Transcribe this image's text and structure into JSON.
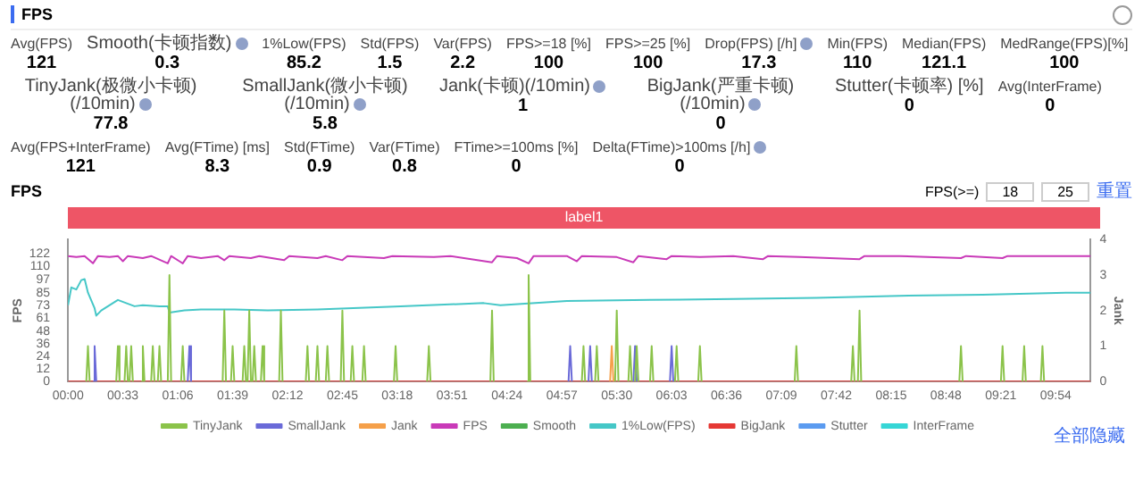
{
  "chart_data": [
    {
      "type": "other",
      "title": "FPS",
      "categories": [
        "Avg(FPS)",
        "Smooth(卡顿指数)",
        "1%Low(FPS)",
        "Std(FPS)",
        "Var(FPS)",
        "FPS>=18 [%]",
        "FPS>=25 [%]",
        "Drop(FPS) [/h]",
        "Min(FPS)",
        "Median(FPS)",
        "MedRange(FPS)[%]",
        "TinyJank(极微小卡顿)(/10min)",
        "SmallJank(微小卡顿)(/10min)",
        "Jank(卡顿)(/10min)",
        "BigJank(严重卡顿)(/10min)",
        "Stutter(卡顿率) [%]",
        "Avg(InterFrame)",
        "Avg(FPS+InterFrame)",
        "Avg(FTime) [ms]",
        "Std(FTime)",
        "Var(FTime)",
        "FTime>=100ms [%]",
        "Delta(FTime)>100ms [/h]"
      ],
      "values": [
        121,
        0.3,
        85.2,
        1.5,
        2.2,
        100,
        100,
        17.3,
        110,
        121.1,
        100,
        77.8,
        5.8,
        1,
        0,
        0,
        0,
        121,
        8.3,
        0.9,
        0.8,
        0,
        0
      ],
      "data_labels": true
    },
    {
      "type": "line",
      "title": "FPS",
      "ylabel": "FPS",
      "y2label": "Jank",
      "legend": "bottom",
      "annotations": [
        "FPS(>=)",
        "18",
        "25",
        "重置",
        "全部隐藏",
        "label1"
      ],
      "xlim": [
        0,
        615
      ],
      "xticks": [
        {
          "value": 0,
          "label": "00:00"
        },
        {
          "value": 33,
          "label": "00:33"
        },
        {
          "value": 66,
          "label": "01:06"
        },
        {
          "value": 99,
          "label": "01:39"
        },
        {
          "value": 132,
          "label": "02:12"
        },
        {
          "value": 165,
          "label": "02:45"
        },
        {
          "value": 198,
          "label": "03:18"
        },
        {
          "value": 231,
          "label": "03:51"
        },
        {
          "value": 264,
          "label": "04:24"
        },
        {
          "value": 297,
          "label": "04:57"
        },
        {
          "value": 330,
          "label": "05:30"
        },
        {
          "value": 363,
          "label": "06:03"
        },
        {
          "value": 396,
          "label": "06:36"
        },
        {
          "value": 429,
          "label": "07:09"
        },
        {
          "value": 462,
          "label": "07:42"
        },
        {
          "value": 495,
          "label": "08:15"
        },
        {
          "value": 528,
          "label": "08:48"
        },
        {
          "value": 561,
          "label": "09:21"
        },
        {
          "value": 594,
          "label": "09:54"
        }
      ],
      "ylim": [
        0,
        135.6
      ],
      "yticks": [
        0,
        12,
        24,
        36,
        48,
        61,
        73,
        85,
        97,
        110,
        122
      ],
      "y2lim": [
        0,
        4
      ],
      "y2ticks": [
        0,
        1,
        2,
        3,
        4
      ],
      "series": [
        {
          "name": "FPS",
          "color": "#c93ab8",
          "x": [
            0,
            5,
            10,
            15,
            18,
            25,
            30,
            33,
            36,
            45,
            50,
            60,
            62,
            67,
            69,
            72,
            80,
            90,
            94,
            97,
            110,
            115,
            130,
            133,
            150,
            155,
            165,
            168,
            190,
            195,
            220,
            230,
            255,
            258,
            270,
            277,
            280,
            300,
            306,
            309,
            330,
            340,
            343,
            360,
            363,
            380,
            400,
            418,
            421,
            440,
            476,
            479,
            500,
            537,
            540,
            562,
            565,
            590,
            615
          ],
          "values": [
            120,
            119,
            120,
            113,
            120,
            119,
            120,
            115,
            120,
            118,
            120,
            113,
            120,
            115,
            113,
            120,
            118,
            120,
            116,
            120,
            118,
            120,
            116,
            120,
            118,
            120,
            116,
            120,
            118,
            120,
            119,
            120,
            114,
            120,
            118,
            113,
            120,
            120,
            115,
            120,
            119,
            114,
            120,
            117,
            120,
            119,
            120,
            117,
            120,
            119,
            117,
            120,
            120,
            118,
            120,
            118,
            120,
            120,
            120
          ]
        },
        {
          "name": "Smooth",
          "color": "#4caf50"
        },
        {
          "name": "1%Low(FPS)",
          "color": "#45c7c7",
          "x": [
            0,
            2,
            5,
            8,
            10,
            12,
            16,
            17,
            20,
            27,
            30,
            35,
            40,
            45,
            55,
            60,
            61,
            70,
            80,
            100,
            120,
            150,
            200,
            250,
            260,
            300,
            350,
            400,
            450,
            500,
            550,
            600,
            615
          ],
          "values": [
            73,
            90,
            88,
            97,
            98,
            85,
            70,
            63,
            68,
            75,
            78,
            75,
            72,
            73,
            72,
            72,
            66,
            68,
            69,
            69,
            68,
            69,
            72,
            75,
            73,
            77,
            78,
            79,
            80,
            82,
            83,
            85,
            85
          ]
        },
        {
          "name": "TinyJank",
          "color": "#8bc34a",
          "axis": "y2",
          "x": [
            11,
            12,
            13,
            14,
            29,
            30,
            31,
            32,
            34,
            35,
            36,
            37,
            38,
            39,
            40,
            44,
            45,
            46,
            47,
            50,
            51,
            52,
            53,
            54,
            55,
            56,
            57,
            60,
            61,
            62,
            63,
            68,
            69,
            70,
            71,
            93,
            94,
            95,
            96,
            98,
            99,
            100,
            101,
            105,
            106,
            107,
            108,
            109,
            110,
            111,
            112,
            113,
            114,
            116,
            117,
            118,
            119,
            127,
            128,
            129,
            130,
            143,
            144,
            145,
            146,
            149,
            150,
            151,
            152,
            155,
            156,
            157,
            158,
            164,
            165,
            166,
            167,
            170,
            171,
            172,
            173,
            177,
            178,
            179,
            180,
            196,
            197,
            198,
            199,
            216,
            217,
            218,
            219,
            254,
            255,
            256,
            257,
            276,
            277,
            278,
            279,
            309,
            310,
            311,
            312,
            317,
            318,
            319,
            320,
            329,
            330,
            331,
            332,
            337,
            338,
            339,
            340,
            341,
            342,
            343,
            344,
            350,
            351,
            352,
            353,
            365,
            366,
            367,
            368,
            379,
            380,
            381,
            382,
            437,
            438,
            439,
            440,
            471,
            472,
            473,
            474,
            475,
            476,
            477,
            478,
            536,
            537,
            538,
            539,
            561,
            562,
            563,
            564,
            574,
            575,
            576,
            577,
            585,
            586,
            587
          ],
          "values": [
            0,
            1,
            0,
            null,
            0,
            1,
            0,
            null,
            0,
            1,
            0,
            0,
            1,
            0,
            null,
            0,
            1,
            0,
            null,
            0,
            1,
            0,
            null,
            0,
            1,
            0,
            null,
            0,
            3,
            0,
            null,
            0,
            1,
            0,
            null,
            0,
            2,
            0,
            null,
            0,
            1,
            0,
            null,
            0,
            1,
            0,
            0,
            2,
            0,
            0,
            1,
            0,
            null,
            0,
            1,
            0,
            null,
            0,
            2,
            0,
            null,
            0,
            1,
            0,
            null,
            0,
            1,
            0,
            null,
            0,
            1,
            0,
            null,
            0,
            2,
            0,
            null,
            0,
            1,
            0,
            null,
            0,
            1,
            0,
            null,
            0,
            1,
            0,
            null,
            0,
            1,
            0,
            null,
            0,
            2,
            0,
            null,
            0,
            3,
            0,
            null,
            0,
            1,
            0,
            null,
            0,
            1,
            0,
            null,
            0,
            2,
            0,
            null,
            0,
            1,
            0,
            null,
            0,
            1,
            0,
            null,
            0,
            1,
            0,
            null,
            0,
            1,
            0,
            null,
            0,
            1,
            0,
            null,
            0,
            1,
            0,
            null,
            0,
            1,
            0,
            null,
            0,
            2,
            0,
            null,
            0,
            1,
            0,
            null,
            0,
            1,
            0,
            null,
            0,
            1,
            0,
            null,
            0,
            1,
            0
          ]
        },
        {
          "name": "SmallJank",
          "color": "#6a6ad8",
          "axis": "y2",
          "x": [
            15,
            16,
            17,
            18,
            72,
            73,
            74,
            75,
            301,
            302,
            303,
            304,
            313,
            314,
            315,
            316,
            340,
            341,
            342,
            343,
            362,
            363,
            364
          ],
          "values": [
            0,
            1,
            0,
            null,
            0,
            1,
            0,
            null,
            0,
            1,
            0,
            null,
            0,
            1,
            0,
            null,
            0,
            1,
            0,
            null,
            0,
            1,
            0
          ]
        },
        {
          "name": "Jank",
          "color": "#f5a04a",
          "axis": "y2",
          "x": [
            326,
            327,
            328
          ],
          "values": [
            0,
            1,
            0
          ]
        },
        {
          "name": "BigJank",
          "color": "#e53935",
          "axis": "y2",
          "x": [
            0,
            615
          ],
          "values": [
            0,
            0
          ]
        },
        {
          "name": "Stutter",
          "color": "#5b9bf0",
          "axis": "y2"
        },
        {
          "name": "InterFrame",
          "color": "#36d6d6",
          "axis": "y2"
        }
      ]
    }
  ]
}
